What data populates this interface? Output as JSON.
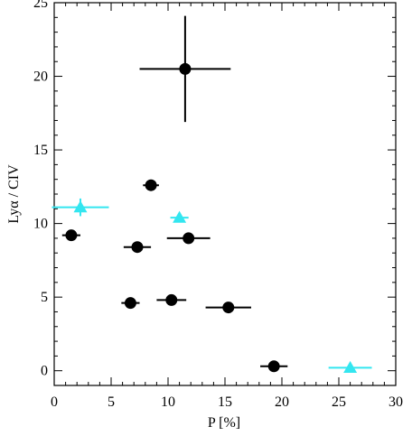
{
  "chart_data": {
    "type": "scatter",
    "xlabel": "P [%]",
    "ylabel": "Lyα / CIV",
    "xlim": [
      0,
      30
    ],
    "ylim": [
      -1,
      25
    ],
    "xticks": [
      0,
      5,
      10,
      15,
      20,
      25,
      30
    ],
    "yticks": [
      0,
      5,
      10,
      15,
      20,
      25
    ],
    "grid": false,
    "series": [
      {
        "marker": "circle",
        "color": "#000000",
        "points": [
          {
            "x": 11.5,
            "y": 20.5,
            "xerr": 4.0,
            "yerr": 3.6
          },
          {
            "x": 1.5,
            "y": 9.2,
            "xerr": 0.8,
            "yerr": 0
          },
          {
            "x": 8.5,
            "y": 12.6,
            "xerr": 0.7,
            "yerr": 0
          },
          {
            "x": 7.3,
            "y": 8.4,
            "xerr": 1.2,
            "yerr": 0
          },
          {
            "x": 11.8,
            "y": 9.0,
            "xerr": 1.9,
            "yerr": 0
          },
          {
            "x": 6.7,
            "y": 4.6,
            "xerr": 0.8,
            "yerr": 0
          },
          {
            "x": 10.3,
            "y": 4.8,
            "xerr": 1.3,
            "yerr": 0
          },
          {
            "x": 15.3,
            "y": 4.3,
            "xerr": 2.0,
            "yerr": 0
          },
          {
            "x": 19.3,
            "y": 0.3,
            "xerr": 1.2,
            "yerr": 0
          }
        ]
      },
      {
        "marker": "triangle",
        "color": "#33e6f0",
        "points": [
          {
            "x": 2.3,
            "y": 11.1,
            "xerr": 2.5,
            "yerr": 0.6
          },
          {
            "x": 11.0,
            "y": 10.4,
            "xerr": 0.8,
            "yerr": 0
          },
          {
            "x": 26.0,
            "y": 0.2,
            "xerr": 1.9,
            "yerr": 0
          }
        ]
      }
    ]
  }
}
